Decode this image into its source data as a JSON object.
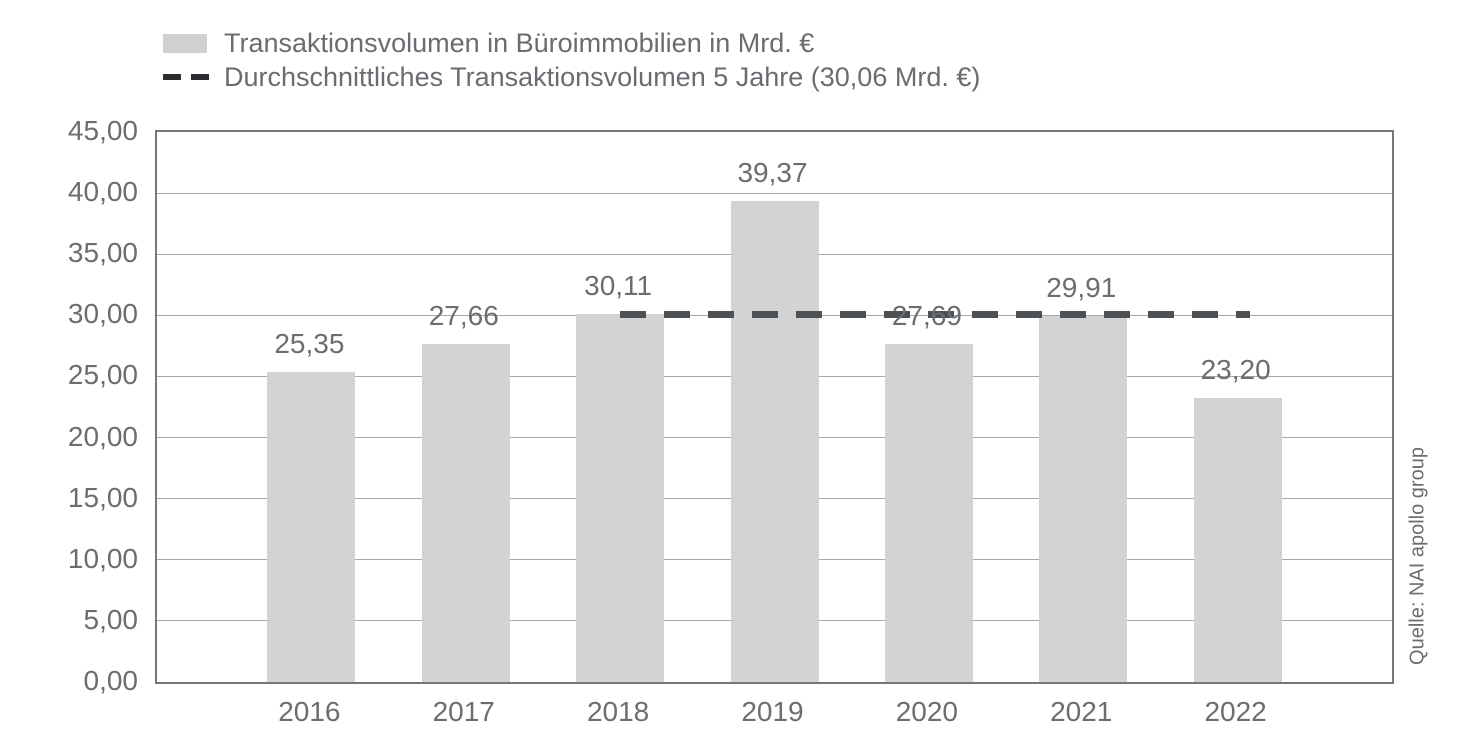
{
  "legend": {
    "series1_label": "Transaktionsvolumen in Büroimmobilien in Mrd. €",
    "series2_label": "Durchschnittliches Transaktionsvolumen 5 Jahre (30,06 Mrd. €)"
  },
  "source": "Quelle: NAI apollo group",
  "colors": {
    "bar": "#d2d3d5",
    "average_line": "#4e5154",
    "legend_dash": "#2b2d30",
    "axis_frame": "#74777b",
    "gridline": "#a6a8ab",
    "text": "#6b6e71"
  },
  "chart_data": {
    "type": "bar",
    "categories": [
      "2016",
      "2017",
      "2018",
      "2019",
      "2020",
      "2021",
      "2022"
    ],
    "values": [
      25.35,
      27.66,
      30.11,
      39.37,
      27.69,
      29.91,
      23.2
    ],
    "value_labels": [
      "25,35",
      "27,66",
      "30,11",
      "39,37",
      "27,69",
      "29,91",
      "23,20"
    ],
    "title": "",
    "xlabel": "",
    "ylabel": "",
    "ylim": [
      0,
      45
    ],
    "ytick_step": 5,
    "ytick_labels": [
      "0,00",
      "5,00",
      "10,00",
      "15,00",
      "20,00",
      "25,00",
      "30,00",
      "35,00",
      "40,00",
      "45,00"
    ],
    "grid": true,
    "legend_position": "top-left",
    "average_line": {
      "value": 30.06,
      "span_categories": [
        "2018",
        "2022"
      ],
      "label": "Durchschnittliches Transaktionsvolumen 5 Jahre (30,06 Mrd. €)"
    }
  }
}
